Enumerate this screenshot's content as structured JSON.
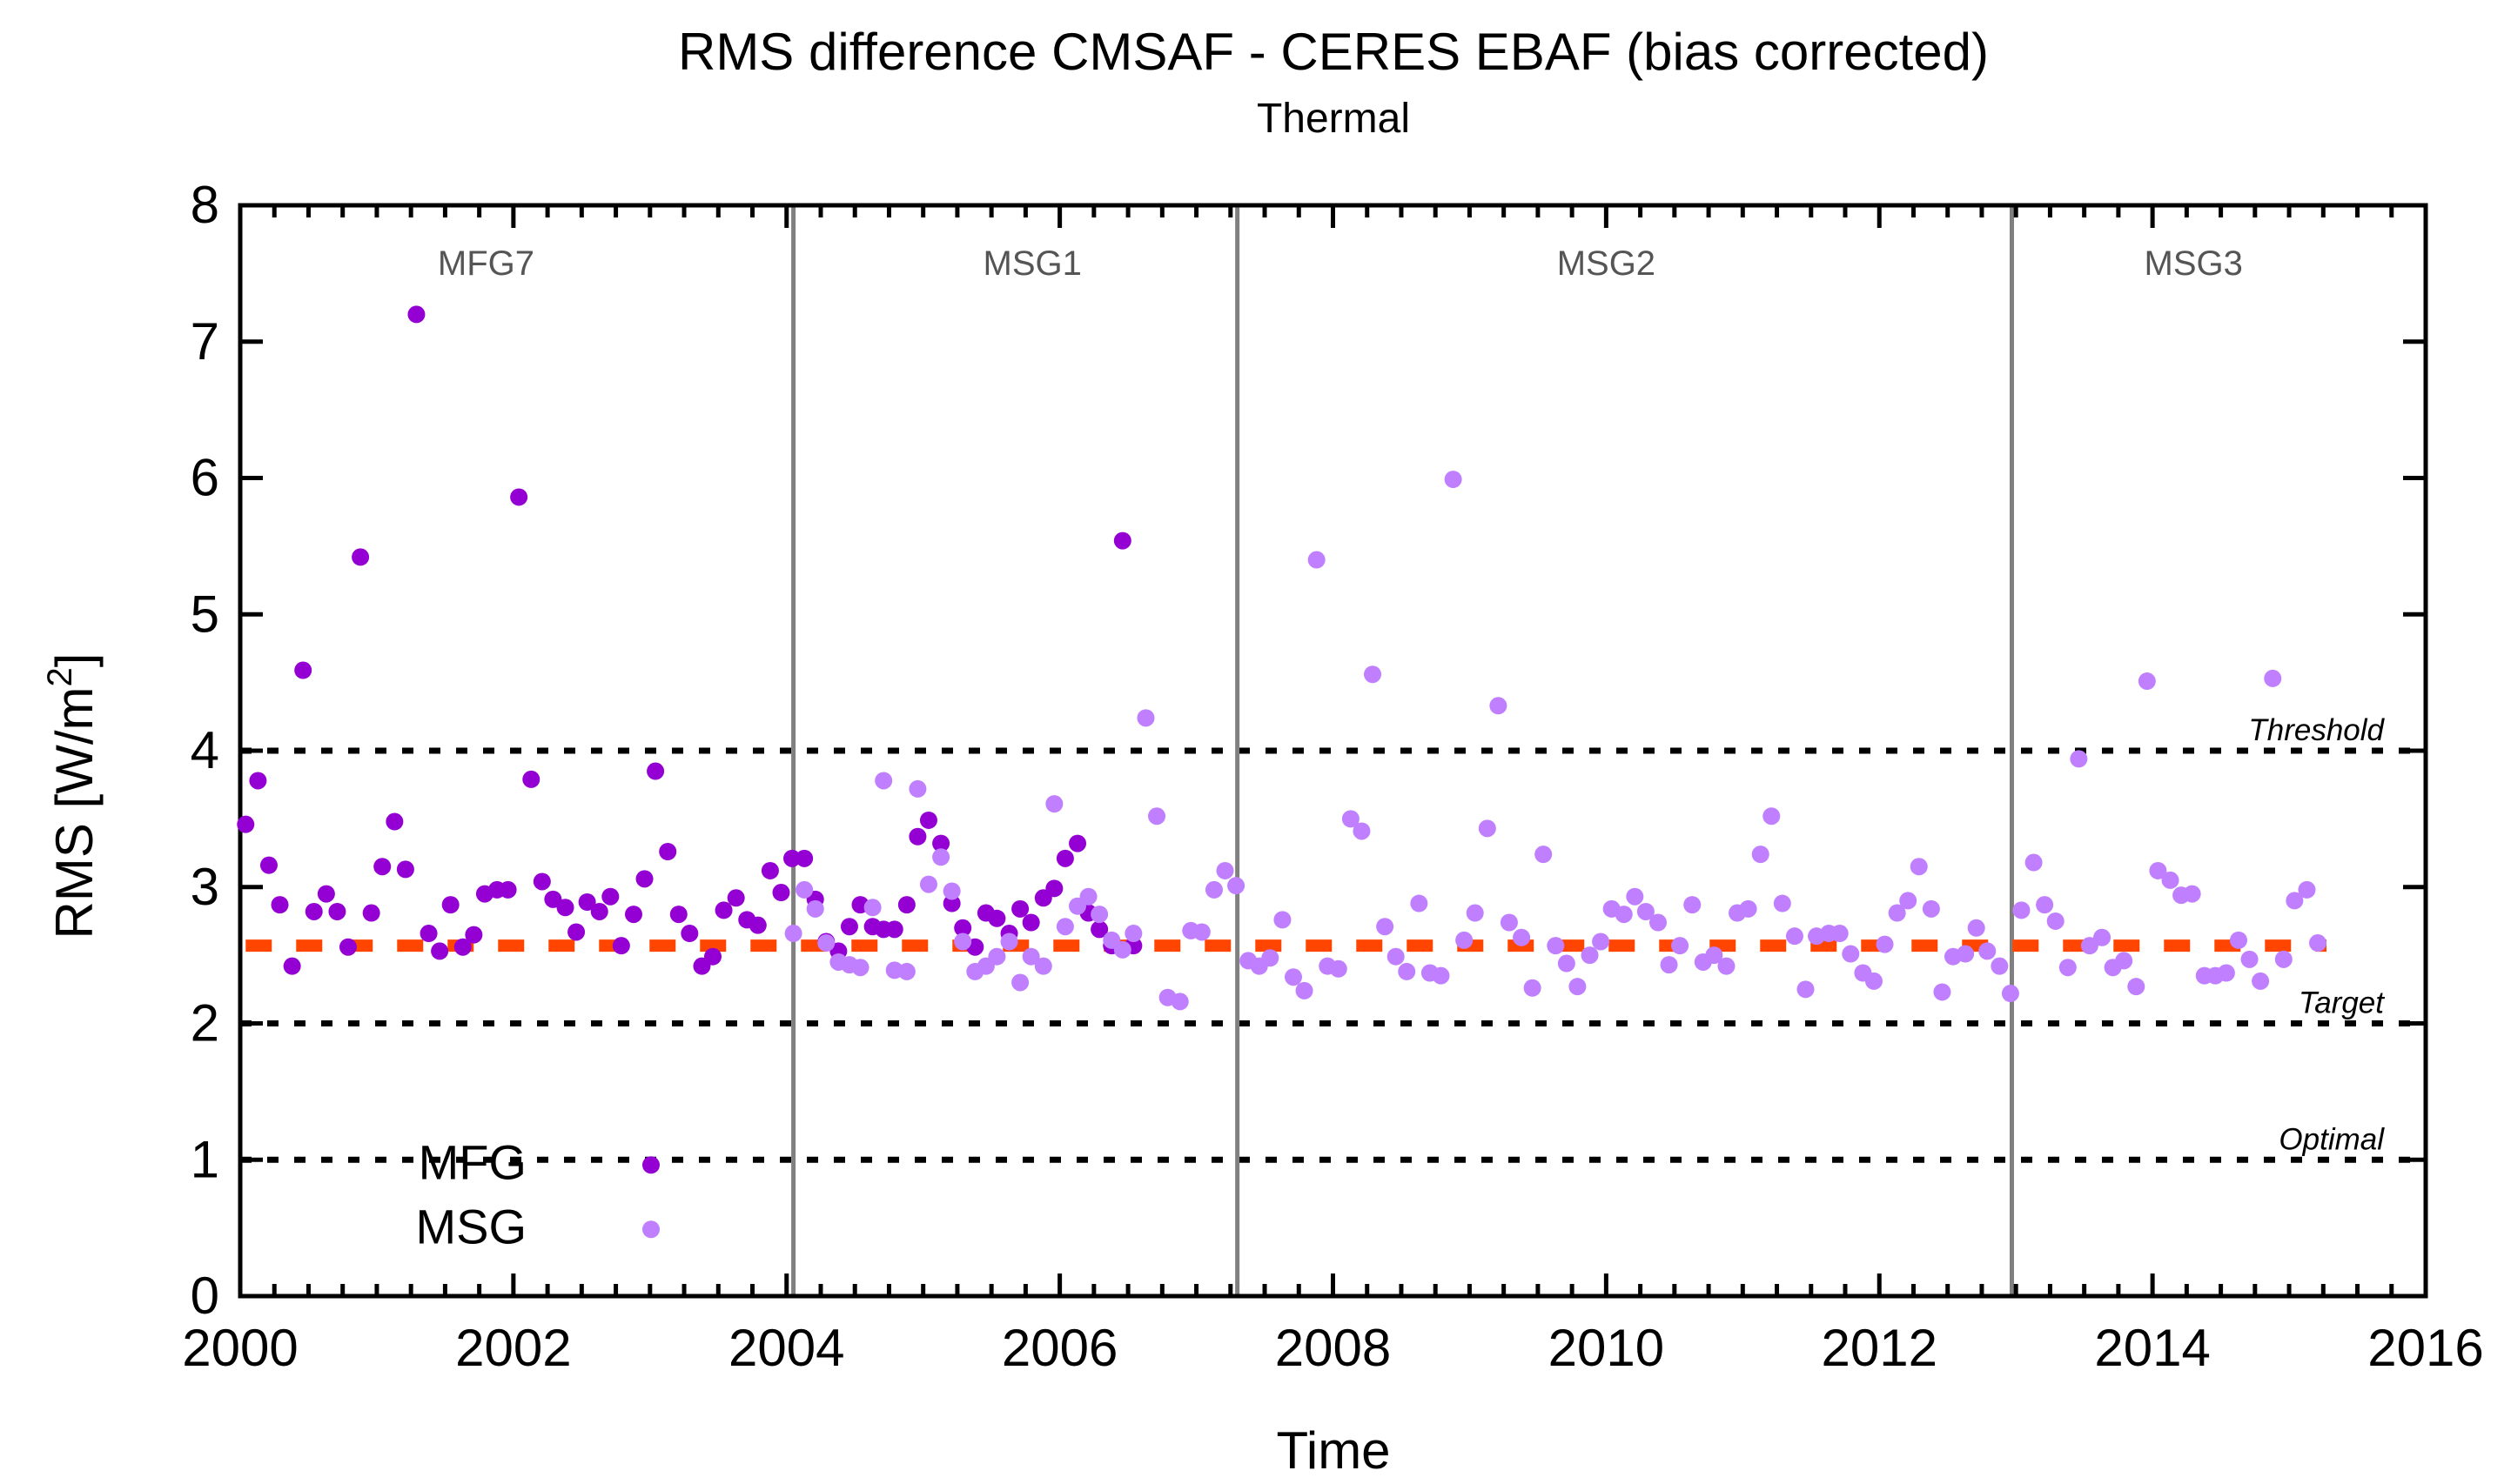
{
  "chart_data": {
    "type": "scatter",
    "title": "RMS difference CMSAF - CERES EBAF (bias corrected)",
    "subtitle": "Thermal",
    "xlabel": "Time",
    "ylabel": "RMS [W/m",
    "ylabel_sup": "2",
    "ylabel_end": "]",
    "xlim": [
      2000,
      2016
    ],
    "ylim": [
      0,
      8
    ],
    "xticks": [
      "2000",
      "2002",
      "2004",
      "2006",
      "2008",
      "2010",
      "2012",
      "2014",
      "2016"
    ],
    "yticks": [
      "0",
      "1",
      "2",
      "3",
      "4",
      "5",
      "6",
      "7",
      "8"
    ],
    "satellite_changes": [
      2004.05,
      2007.3,
      2012.97
    ],
    "eras": [
      {
        "label": "MFG7",
        "x": 2001.8
      },
      {
        "label": "MSG1",
        "x": 2005.8
      },
      {
        "label": "MSG2",
        "x": 2010.0
      },
      {
        "label": "MSG3",
        "x": 2014.3
      }
    ],
    "reference_lines": [
      {
        "label": "Threshold",
        "y": 4
      },
      {
        "label": "Target",
        "y": 2
      },
      {
        "label": "Optimal",
        "y": 1
      }
    ],
    "mean_line": {
      "y": 2.57,
      "color": "#ff4500"
    },
    "series": [
      {
        "name": "MFG",
        "color": "#9400d3",
        "x": [
          2000.04,
          2000.13,
          2000.21,
          2000.29,
          2000.38,
          2000.46,
          2000.54,
          2000.63,
          2000.71,
          2000.79,
          2000.88,
          2000.96,
          2001.04,
          2001.13,
          2001.21,
          2001.29,
          2001.38,
          2001.46,
          2001.54,
          2001.63,
          2001.71,
          2001.79,
          2001.88,
          2001.96,
          2002.04,
          2002.13,
          2002.21,
          2002.29,
          2002.38,
          2002.46,
          2002.54,
          2002.63,
          2002.71,
          2002.79,
          2002.88,
          2002.96,
          2003.04,
          2003.13,
          2003.21,
          2003.29,
          2003.38,
          2003.46,
          2003.54,
          2003.63,
          2003.71,
          2003.79,
          2003.88,
          2003.96,
          2004.04,
          2004.13,
          2004.21,
          2004.29,
          2004.38,
          2004.46,
          2004.54,
          2004.63,
          2004.71,
          2004.79,
          2004.88,
          2004.96,
          2005.04,
          2005.13,
          2005.21,
          2005.29,
          2005.38,
          2005.46,
          2005.54,
          2005.63,
          2005.71,
          2005.79,
          2005.88,
          2005.96,
          2006.04,
          2006.13,
          2006.21,
          2006.29,
          2006.38,
          2006.46,
          2006.54
        ],
        "y": [
          3.46,
          3.78,
          3.16,
          2.87,
          2.42,
          4.59,
          2.82,
          2.95,
          2.82,
          2.56,
          5.42,
          2.81,
          3.15,
          3.48,
          3.13,
          7.2,
          2.66,
          2.53,
          2.87,
          2.56,
          2.65,
          2.95,
          2.98,
          2.98,
          5.86,
          3.79,
          3.04,
          2.91,
          2.85,
          2.67,
          2.89,
          2.82,
          2.93,
          2.57,
          2.8,
          3.06,
          3.85,
          3.26,
          2.8,
          2.66,
          2.42,
          2.49,
          2.83,
          2.92,
          2.76,
          2.72,
          3.12,
          2.96,
          3.21,
          3.21,
          2.91,
          2.6,
          2.53,
          2.71,
          2.87,
          2.71,
          2.69,
          2.69,
          2.87,
          3.37,
          3.49,
          3.32,
          2.88,
          2.7,
          2.56,
          2.81,
          2.77,
          2.66,
          2.84,
          2.74,
          2.92,
          2.99,
          3.21,
          3.32,
          2.81,
          2.69,
          2.57,
          5.54,
          2.57
        ]
      },
      {
        "name": "MSG",
        "color": "#bf7fff",
        "x": [
          2004.05,
          2004.13,
          2004.21,
          2004.29,
          2004.38,
          2004.46,
          2004.54,
          2004.63,
          2004.71,
          2004.79,
          2004.88,
          2004.96,
          2005.04,
          2005.13,
          2005.21,
          2005.29,
          2005.38,
          2005.46,
          2005.54,
          2005.63,
          2005.71,
          2005.79,
          2005.88,
          2005.96,
          2006.04,
          2006.13,
          2006.21,
          2006.29,
          2006.38,
          2006.46,
          2006.54,
          2006.63,
          2006.71,
          2006.79,
          2006.88,
          2006.96,
          2007.04,
          2007.13,
          2007.21,
          2007.29,
          2007.38,
          2007.46,
          2007.54,
          2007.63,
          2007.71,
          2007.79,
          2007.88,
          2007.96,
          2008.04,
          2008.13,
          2008.21,
          2008.29,
          2008.38,
          2008.46,
          2008.54,
          2008.63,
          2008.71,
          2008.79,
          2008.88,
          2008.96,
          2009.04,
          2009.13,
          2009.21,
          2009.29,
          2009.38,
          2009.46,
          2009.54,
          2009.63,
          2009.71,
          2009.79,
          2009.88,
          2009.96,
          2010.04,
          2010.13,
          2010.21,
          2010.29,
          2010.38,
          2010.46,
          2010.54,
          2010.63,
          2010.71,
          2010.79,
          2010.88,
          2010.96,
          2011.04,
          2011.13,
          2011.21,
          2011.29,
          2011.38,
          2011.46,
          2011.54,
          2011.63,
          2011.71,
          2011.79,
          2011.88,
          2011.96,
          2012.04,
          2012.13,
          2012.21,
          2012.29,
          2012.38,
          2012.46,
          2012.54,
          2012.63,
          2012.71,
          2012.79,
          2012.88,
          2012.96,
          2013.04,
          2013.13,
          2013.21,
          2013.29,
          2013.38,
          2013.46,
          2013.54,
          2013.63,
          2013.71,
          2013.79,
          2013.88,
          2013.96,
          2014.04,
          2014.13,
          2014.21,
          2014.29,
          2014.38,
          2014.46,
          2014.54,
          2014.63,
          2014.71,
          2014.79,
          2014.88,
          2014.96,
          2015.04,
          2015.13,
          2015.21
        ],
        "y": [
          2.66,
          2.98,
          2.84,
          2.59,
          2.45,
          2.43,
          2.41,
          2.85,
          3.78,
          2.39,
          2.38,
          3.72,
          3.02,
          3.22,
          2.97,
          2.6,
          2.38,
          2.42,
          2.49,
          2.6,
          2.3,
          2.49,
          2.42,
          3.61,
          2.71,
          2.86,
          2.93,
          2.8,
          2.61,
          2.54,
          2.66,
          4.24,
          3.52,
          2.19,
          2.16,
          2.68,
          2.67,
          2.98,
          3.12,
          3.01,
          2.46,
          2.42,
          2.48,
          2.76,
          2.34,
          2.24,
          5.4,
          2.42,
          2.4,
          3.5,
          3.41,
          4.56,
          2.71,
          2.49,
          2.38,
          2.88,
          2.37,
          2.35,
          5.99,
          2.61,
          2.81,
          3.43,
          4.33,
          2.74,
          2.63,
          2.26,
          3.24,
          2.57,
          2.44,
          2.27,
          2.5,
          2.6,
          2.84,
          2.8,
          2.93,
          2.82,
          2.74,
          2.43,
          2.57,
          2.87,
          2.45,
          2.5,
          2.42,
          2.81,
          2.84,
          3.24,
          3.52,
          2.88,
          2.64,
          2.25,
          2.64,
          2.66,
          2.66,
          2.51,
          2.37,
          2.31,
          2.58,
          2.81,
          2.9,
          3.15,
          2.84,
          2.23,
          2.49,
          2.51,
          2.7,
          2.53,
          2.42,
          2.22,
          2.83,
          3.18,
          2.87,
          2.75,
          2.41,
          3.94,
          2.57,
          2.63,
          2.41,
          2.46,
          2.27,
          4.51,
          3.12,
          3.05,
          2.94,
          2.95,
          2.35,
          2.35,
          2.37,
          2.61,
          2.47,
          2.31,
          4.53,
          2.47,
          2.9,
          2.98,
          2.59
        ]
      }
    ],
    "legend": [
      {
        "label": "MFG",
        "color": "#9400d3"
      },
      {
        "label": "MSG",
        "color": "#bf7fff"
      }
    ],
    "legend_position": "bottom-left"
  }
}
